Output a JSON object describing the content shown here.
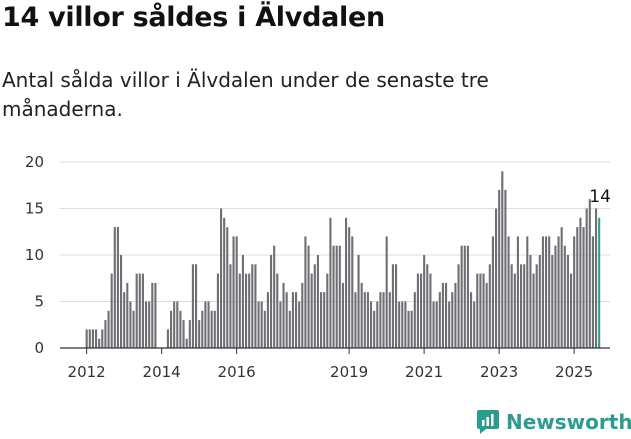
{
  "title": "14 villor såldes i Älvdalen",
  "subtitle": "Antal sålda villor i Älvdalen under de senaste tre månaderna.",
  "brand": {
    "name": "Newsworthy",
    "icon": "newsworthy-logo-icon",
    "color": "#2a9d8f"
  },
  "colors": {
    "bar": "#6e6e73",
    "highlight": "#2a9d8f",
    "grid": "#dddddd"
  },
  "chart_data": {
    "type": "bar",
    "title": "14 villor såldes i Älvdalen",
    "xlabel": "",
    "ylabel": "",
    "ylim": [
      0,
      20
    ],
    "yticks": [
      0,
      5,
      10,
      15,
      20
    ],
    "xticks": [
      {
        "label": "2012",
        "index": 1
      },
      {
        "label": "2014",
        "index": 25
      },
      {
        "label": "2016",
        "index": 49
      },
      {
        "label": "2019",
        "index": 85
      },
      {
        "label": "2021",
        "index": 109
      },
      {
        "label": "2023",
        "index": 133
      },
      {
        "label": "2025",
        "index": 157
      }
    ],
    "start_month": "2011-12",
    "values": [
      0,
      2,
      2,
      2,
      2,
      1,
      2,
      3,
      4,
      8,
      13,
      13,
      10,
      6,
      7,
      5,
      4,
      8,
      8,
      8,
      5,
      5,
      7,
      7,
      0,
      0,
      0,
      2,
      4,
      5,
      5,
      4,
      3,
      1,
      3,
      9,
      9,
      3,
      4,
      5,
      5,
      4,
      4,
      8,
      15,
      14,
      13,
      9,
      12,
      12,
      8,
      10,
      8,
      8,
      9,
      9,
      5,
      5,
      4,
      6,
      10,
      11,
      8,
      5,
      7,
      6,
      4,
      6,
      6,
      5,
      7,
      12,
      11,
      8,
      9,
      10,
      6,
      6,
      8,
      14,
      11,
      11,
      11,
      7,
      14,
      13,
      12,
      6,
      10,
      7,
      6,
      6,
      5,
      4,
      5,
      6,
      6,
      12,
      6,
      9,
      9,
      5,
      5,
      5,
      4,
      4,
      6,
      8,
      8,
      10,
      9,
      8,
      5,
      5,
      6,
      7,
      7,
      5,
      6,
      7,
      9,
      11,
      11,
      11,
      6,
      5,
      8,
      8,
      8,
      7,
      9,
      12,
      15,
      17,
      19,
      17,
      12,
      9,
      8,
      12,
      9,
      9,
      12,
      10,
      8,
      9,
      10,
      12,
      12,
      12,
      10,
      11,
      12,
      13,
      11,
      10,
      8,
      12,
      13,
      14,
      13,
      15,
      16,
      12,
      15,
      14
    ],
    "highlight_last": true,
    "annotations": [
      {
        "label": "14",
        "value": 14
      }
    ]
  }
}
